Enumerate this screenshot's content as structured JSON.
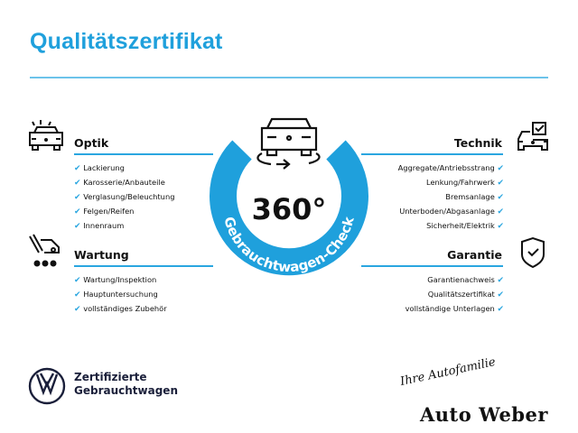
{
  "title": "Qualitätszertifikat",
  "colors": {
    "accent": "#1fa0dc",
    "text": "#111111",
    "vw_navy": "#1a1f3a"
  },
  "center": {
    "value": "360°",
    "ring_text": "Gebrauchtwagen-Check",
    "icon": "car-rotate-icon"
  },
  "sections": {
    "optik": {
      "heading": "Optik",
      "icon": "car-lights-icon",
      "items": [
        "Lackierung",
        "Karosserie/Anbauteile",
        "Verglasung/Beleuchtung",
        "Felgen/Reifen",
        "Innenraum"
      ]
    },
    "wartung": {
      "heading": "Wartung",
      "icon": "service-tools-icon",
      "items": [
        "Wartung/Inspektion",
        "Hauptuntersuchung",
        "vollständiges Zubehör"
      ]
    },
    "technik": {
      "heading": "Technik",
      "icon": "car-checkbox-icon",
      "items": [
        "Aggregate/Antriebsstrang",
        "Lenkung/Fahrwerk",
        "Bremsanlage",
        "Unterboden/Abgasanlage",
        "Sicherheit/Elektrik"
      ]
    },
    "garantie": {
      "heading": "Garantie",
      "icon": "shield-check-icon",
      "items": [
        "Garantienachweis",
        "Qualitätszertifikat",
        "vollständige Unterlagen"
      ]
    }
  },
  "check_mark": "✔",
  "footer": {
    "vw_line1": "Zertifizierte",
    "vw_line2": "Gebrauchtwagen",
    "dealer_slogan": "Ihre Autofamilie",
    "dealer_name": "Auto Weber"
  }
}
